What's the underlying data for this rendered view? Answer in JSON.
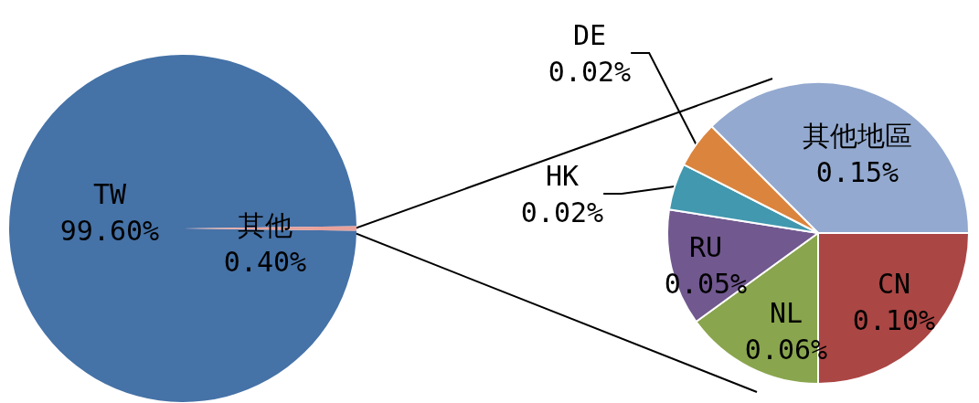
{
  "chart_data": [
    {
      "type": "pie",
      "categories": [
        "TW",
        "其他"
      ],
      "values": [
        99.6,
        0.4
      ],
      "value_labels": [
        "99.60%",
        "0.40%"
      ],
      "colors": [
        "#4572a7",
        "#e8a29c"
      ]
    },
    {
      "type": "pie",
      "categories": [
        "其他地區",
        "CN",
        "NL",
        "RU",
        "HK",
        "DE"
      ],
      "values": [
        0.15,
        0.1,
        0.06,
        0.05,
        0.02,
        0.02
      ],
      "value_labels": [
        "0.15%",
        "0.10%",
        "0.06%",
        "0.05%",
        "0.02%",
        "0.02%"
      ],
      "colors": [
        "#93a9cf",
        "#aa4644",
        "#89a54e",
        "#71588f",
        "#4198af",
        "#db843d"
      ]
    }
  ]
}
